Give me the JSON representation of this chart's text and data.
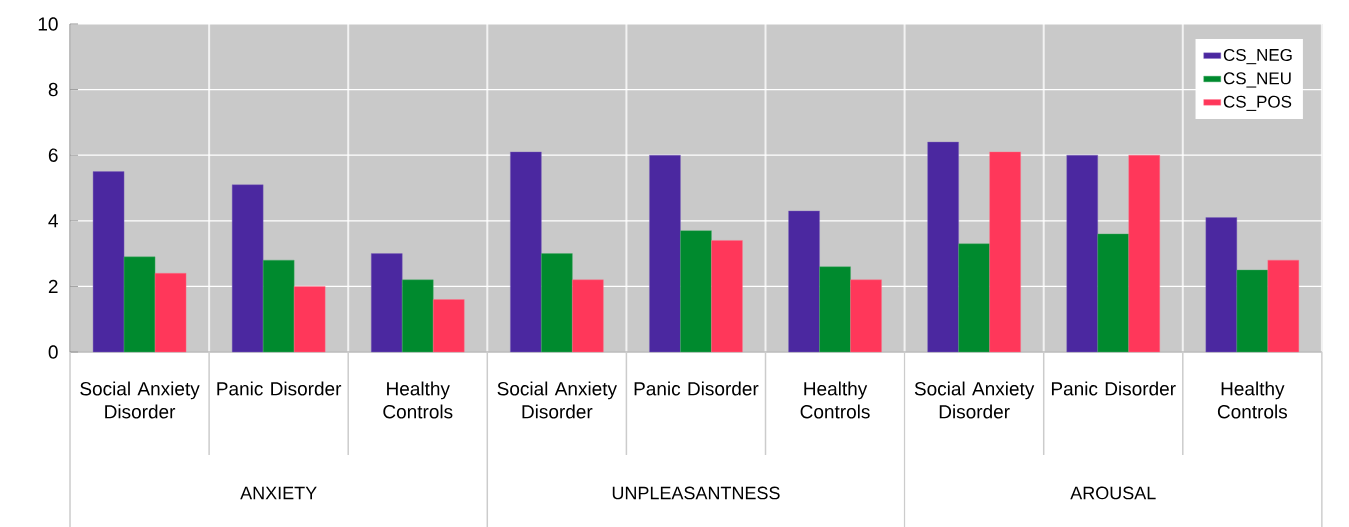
{
  "chart_data": {
    "type": "bar",
    "categories": [
      "Social Anxiety Disorder",
      "Panic Disorder",
      "Healthy Controls",
      "Social Anxiety Disorder",
      "Panic Disorder",
      "Healthy Controls",
      "Social Anxiety Disorder",
      "Panic Disorder",
      "Healthy Controls"
    ],
    "series": [
      {
        "name": "CS_NEG",
        "color": "#4b28a0",
        "values": [
          5.5,
          5.1,
          3.0,
          6.1,
          6.0,
          4.3,
          6.4,
          6.0,
          4.1
        ]
      },
      {
        "name": "CS_NEU",
        "color": "#008a2e",
        "values": [
          2.9,
          2.8,
          2.2,
          3.0,
          3.7,
          2.6,
          3.3,
          3.6,
          2.5
        ]
      },
      {
        "name": "CS_POS",
        "color": "#ff375a",
        "values": [
          2.4,
          2.0,
          1.6,
          2.2,
          3.4,
          2.2,
          6.1,
          6.0,
          2.8
        ]
      }
    ],
    "annotations": [
      "ANXIETY",
      "UNPLEASANTNESS",
      "AROUSAL"
    ],
    "ylim": [
      0,
      10
    ],
    "yticks": [
      0,
      2,
      4,
      6,
      8,
      10
    ],
    "grid": true,
    "legend": "top right"
  }
}
